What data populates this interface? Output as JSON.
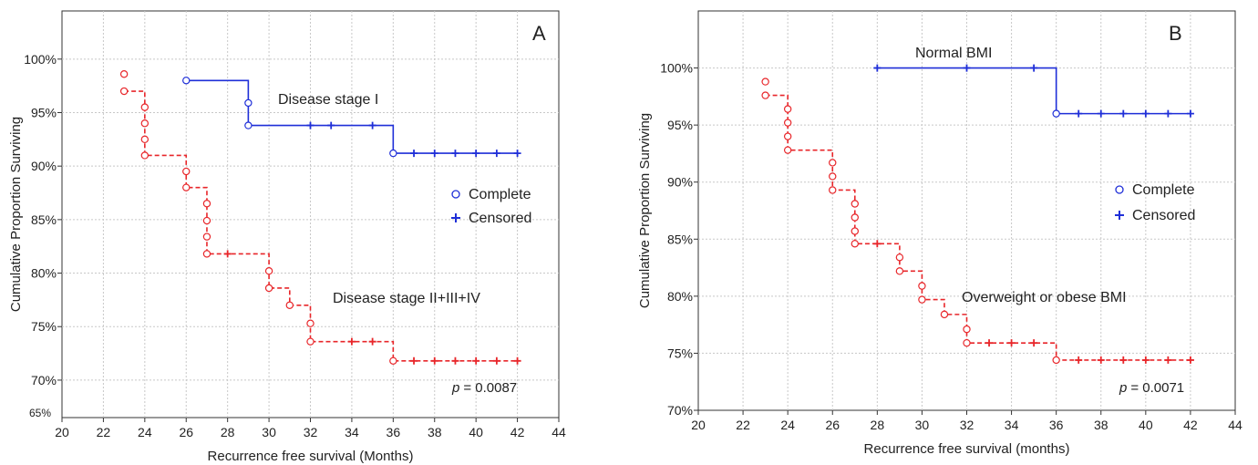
{
  "chart_data": [
    {
      "type": "line",
      "panel_label": "A",
      "xlabel": "Recurrence free survival (Months)",
      "ylabel": "Cumulative Proportion Surviving",
      "xlim": [
        20,
        44
      ],
      "ylim": [
        0.665,
        1.045
      ],
      "xticks": [
        20,
        22,
        24,
        26,
        28,
        30,
        32,
        34,
        36,
        38,
        40,
        42,
        44
      ],
      "yticks": [
        {
          "value": 0.65,
          "label": "65%"
        },
        {
          "value": 0.7,
          "label": "70%"
        },
        {
          "value": 0.75,
          "label": "75%"
        },
        {
          "value": 0.8,
          "label": "80%"
        },
        {
          "value": 0.85,
          "label": "85%"
        },
        {
          "value": 0.9,
          "label": "90%"
        },
        {
          "value": 0.95,
          "label": "95%"
        },
        {
          "value": 1.0,
          "label": "100%"
        }
      ],
      "grid": true,
      "legend": {
        "position": "right",
        "complete": "Complete",
        "censored": "Censored"
      },
      "p_value_prefix": "p",
      "p_value": "= 0.0087",
      "series": [
        {
          "label": "Disease stage I",
          "color": "#1f2fd8",
          "dash": false,
          "steps": [
            [
              26,
              0.98
            ],
            [
              29,
              0.938
            ],
            [
              36,
              0.912
            ],
            [
              42,
              0.912
            ]
          ],
          "complete": [
            [
              26,
              0.98
            ],
            [
              29,
              0.959
            ],
            [
              29,
              0.938
            ],
            [
              36,
              0.912
            ]
          ],
          "censored": [
            [
              32,
              0.938
            ],
            [
              33,
              0.938
            ],
            [
              35,
              0.938
            ],
            [
              37,
              0.912
            ],
            [
              38,
              0.912
            ],
            [
              39,
              0.912
            ],
            [
              40,
              0.912
            ],
            [
              41,
              0.912
            ],
            [
              42,
              0.912
            ]
          ]
        },
        {
          "label": "Disease stage II+III+IV",
          "color": "#e8262a",
          "dash": true,
          "steps": [
            [
              23,
              0.97
            ],
            [
              24,
              0.91
            ],
            [
              26,
              0.88
            ],
            [
              27,
              0.818
            ],
            [
              30,
              0.786
            ],
            [
              31,
              0.77
            ],
            [
              32,
              0.736
            ],
            [
              36,
              0.718
            ],
            [
              42,
              0.718
            ]
          ],
          "complete": [
            [
              23,
              0.986
            ],
            [
              23,
              0.97
            ],
            [
              24,
              0.955
            ],
            [
              24,
              0.94
            ],
            [
              24,
              0.925
            ],
            [
              24,
              0.91
            ],
            [
              26,
              0.895
            ],
            [
              26,
              0.88
            ],
            [
              27,
              0.865
            ],
            [
              27,
              0.849
            ],
            [
              27,
              0.834
            ],
            [
              27,
              0.818
            ],
            [
              30,
              0.802
            ],
            [
              30,
              0.786
            ],
            [
              31,
              0.77
            ],
            [
              32,
              0.753
            ],
            [
              32,
              0.736
            ],
            [
              36,
              0.718
            ]
          ],
          "censored": [
            [
              28,
              0.818
            ],
            [
              34,
              0.736
            ],
            [
              35,
              0.736
            ],
            [
              37,
              0.718
            ],
            [
              38,
              0.718
            ],
            [
              39,
              0.718
            ],
            [
              40,
              0.718
            ],
            [
              41,
              0.718
            ],
            [
              42,
              0.718
            ]
          ]
        }
      ]
    },
    {
      "type": "line",
      "panel_label": "B",
      "xlabel": "Recurrence free survival (months)",
      "ylabel": "Cumulative Proportion Surviving",
      "xlim": [
        20,
        44
      ],
      "ylim": [
        0.7,
        1.05
      ],
      "xticks": [
        20,
        22,
        24,
        26,
        28,
        30,
        32,
        34,
        36,
        38,
        40,
        42,
        44
      ],
      "yticks": [
        {
          "value": 0.7,
          "label": "70%"
        },
        {
          "value": 0.75,
          "label": "75%"
        },
        {
          "value": 0.8,
          "label": "80%"
        },
        {
          "value": 0.85,
          "label": "85%"
        },
        {
          "value": 0.9,
          "label": "90%"
        },
        {
          "value": 0.95,
          "label": "95%"
        },
        {
          "value": 1.0,
          "label": "100%"
        }
      ],
      "grid": true,
      "legend": {
        "position": "right",
        "complete": "Complete",
        "censored": "Censored"
      },
      "p_value_prefix": "p",
      "p_value": "= 0.0071",
      "series": [
        {
          "label": "Normal BMI",
          "color": "#1f2fd8",
          "dash": false,
          "steps": [
            [
              28,
              1.0
            ],
            [
              36,
              0.96
            ],
            [
              42,
              0.96
            ]
          ],
          "complete": [
            [
              36,
              0.96
            ]
          ],
          "censored": [
            [
              28,
              1.0
            ],
            [
              32,
              1.0
            ],
            [
              35,
              1.0
            ],
            [
              37,
              0.96
            ],
            [
              38,
              0.96
            ],
            [
              39,
              0.96
            ],
            [
              40,
              0.96
            ],
            [
              41,
              0.96
            ],
            [
              42,
              0.96
            ]
          ]
        },
        {
          "label": "Overweight or obese BMI",
          "color": "#e8262a",
          "dash": true,
          "steps": [
            [
              23,
              0.976
            ],
            [
              24,
              0.928
            ],
            [
              26,
              0.893
            ],
            [
              27,
              0.846
            ],
            [
              29,
              0.822
            ],
            [
              30,
              0.797
            ],
            [
              31,
              0.784
            ],
            [
              32,
              0.759
            ],
            [
              36,
              0.744
            ],
            [
              42,
              0.744
            ]
          ],
          "complete": [
            [
              23,
              0.988
            ],
            [
              23,
              0.976
            ],
            [
              24,
              0.964
            ],
            [
              24,
              0.952
            ],
            [
              24,
              0.94
            ],
            [
              24,
              0.928
            ],
            [
              26,
              0.917
            ],
            [
              26,
              0.905
            ],
            [
              26,
              0.893
            ],
            [
              27,
              0.881
            ],
            [
              27,
              0.869
            ],
            [
              27,
              0.857
            ],
            [
              27,
              0.846
            ],
            [
              29,
              0.834
            ],
            [
              29,
              0.822
            ],
            [
              30,
              0.809
            ],
            [
              30,
              0.797
            ],
            [
              31,
              0.784
            ],
            [
              32,
              0.771
            ],
            [
              32,
              0.759
            ],
            [
              36,
              0.744
            ]
          ],
          "censored": [
            [
              28,
              0.846
            ],
            [
              33,
              0.759
            ],
            [
              34,
              0.759
            ],
            [
              35,
              0.759
            ],
            [
              37,
              0.744
            ],
            [
              38,
              0.744
            ],
            [
              39,
              0.744
            ],
            [
              40,
              0.744
            ],
            [
              41,
              0.744
            ],
            [
              42,
              0.744
            ]
          ]
        }
      ]
    }
  ]
}
